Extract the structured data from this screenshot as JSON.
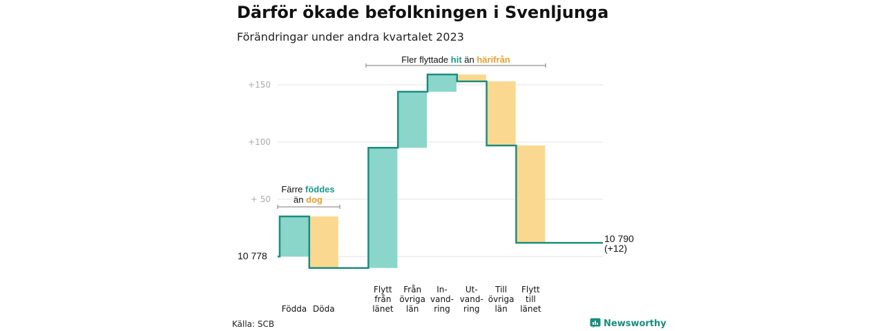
{
  "header": {
    "title": "Därför ökade befolkningen i Svenljunga",
    "subtitle": "Förändringar under andra kvartalet 2023"
  },
  "footer": {
    "source": "Källa: SCB",
    "brand": "Newsworthy"
  },
  "colors": {
    "increase": "#8ad6ca",
    "decrease": "#fbd88f",
    "line": "#1a8c7e",
    "teal_text": "#1a9a8a",
    "orange_text": "#e8a030",
    "grid": "#e3e3e3"
  },
  "chart_data": {
    "type": "waterfall",
    "base_label": "10  778",
    "start_value": 0,
    "end_value": 12,
    "end_label_lines": [
      "10 790",
      "(+12)"
    ],
    "ylim": [
      -10,
      165
    ],
    "yticks": [
      {
        "value": 50,
        "label": "+  50"
      },
      {
        "value": 100,
        "label": "+100"
      },
      {
        "value": 150,
        "label": "+150"
      }
    ],
    "steps": [
      {
        "label_lines": [
          "Födda"
        ],
        "delta": 35
      },
      {
        "label_lines": [
          "Döda"
        ],
        "delta": -45
      },
      {
        "label_lines": [
          ""
        ],
        "delta": 0
      },
      {
        "label_lines": [
          "Flytt",
          "från",
          "länet"
        ],
        "delta": 105
      },
      {
        "label_lines": [
          "Från",
          "övriga",
          "län"
        ],
        "delta": 49
      },
      {
        "label_lines": [
          "In-",
          "vand-",
          "ring"
        ],
        "delta": 15
      },
      {
        "label_lines": [
          "Ut-",
          "vand-",
          "ring"
        ],
        "delta": -6
      },
      {
        "label_lines": [
          "Till",
          "övriga",
          "län"
        ],
        "delta": -56
      },
      {
        "label_lines": [
          "Flytt",
          "till",
          "länet"
        ],
        "delta": -85
      }
    ],
    "annotations": [
      {
        "parts": [
          {
            "text": "Färre ",
            "color": "default"
          },
          {
            "text": "föddes",
            "color": "teal"
          }
        ],
        "parts2": [
          {
            "text": "än ",
            "color": "default"
          },
          {
            "text": "dog",
            "color": "orange"
          }
        ]
      },
      {
        "parts": [
          {
            "text": "Fler flyttade ",
            "color": "default"
          },
          {
            "text": "hit",
            "color": "teal"
          },
          {
            "text": "  än ",
            "color": "default"
          },
          {
            "text": "härifrån",
            "color": "orange"
          }
        ]
      }
    ]
  }
}
